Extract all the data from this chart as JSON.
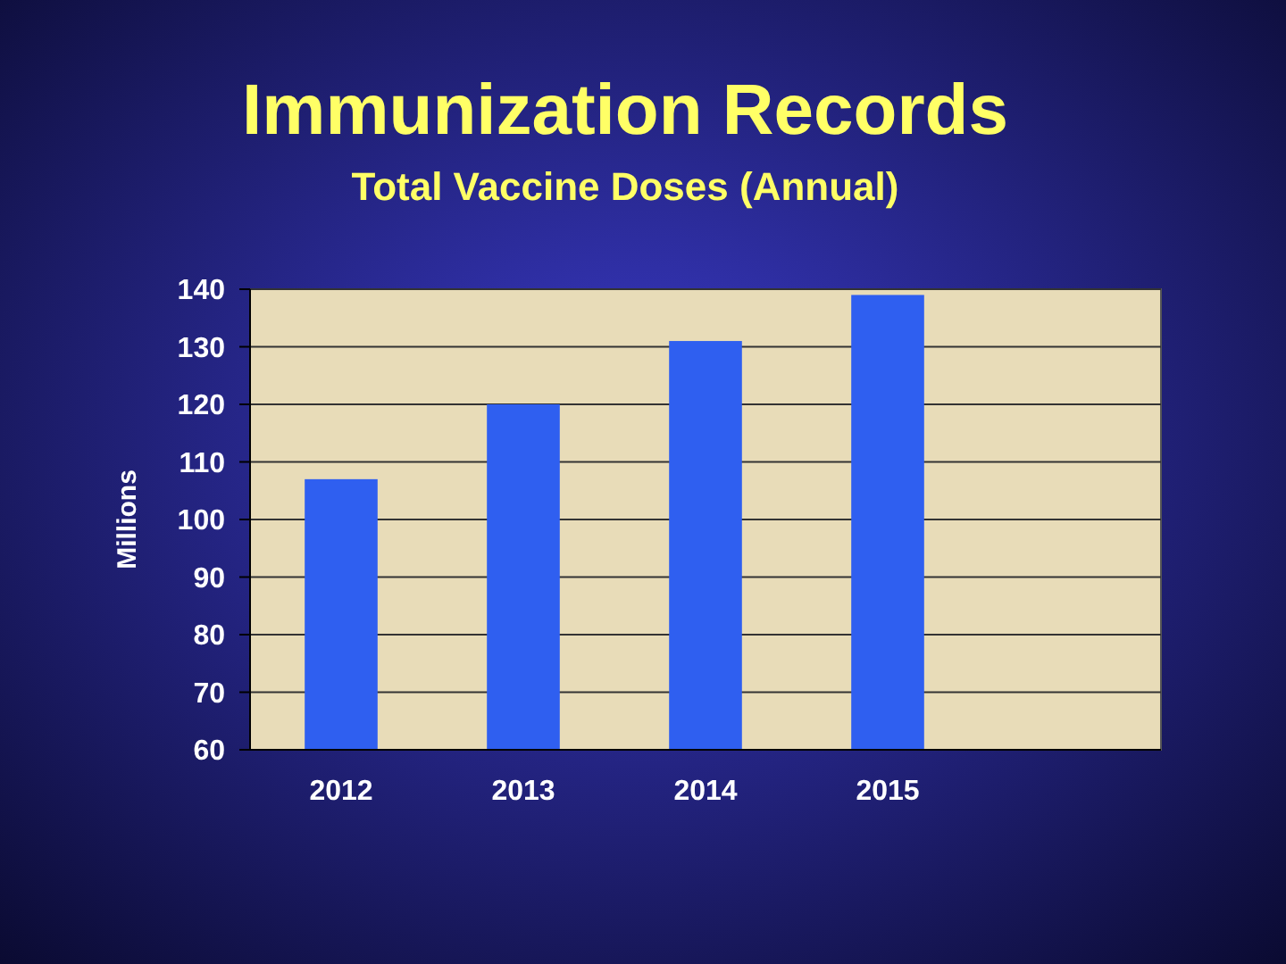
{
  "chart_data": {
    "type": "bar",
    "title": "Immunization Records",
    "subtitle": "Total Vaccine Doses (Annual)",
    "ylabel": "Millions",
    "categories": [
      "2012",
      "2013",
      "2014",
      "2015",
      null
    ],
    "values": [
      107,
      120,
      131,
      139,
      null
    ],
    "color": "#2f5ff0",
    "ylim": [
      60,
      140
    ],
    "yticks": [
      60,
      70,
      80,
      90,
      100,
      110,
      120,
      130,
      140
    ],
    "grid": "y"
  }
}
